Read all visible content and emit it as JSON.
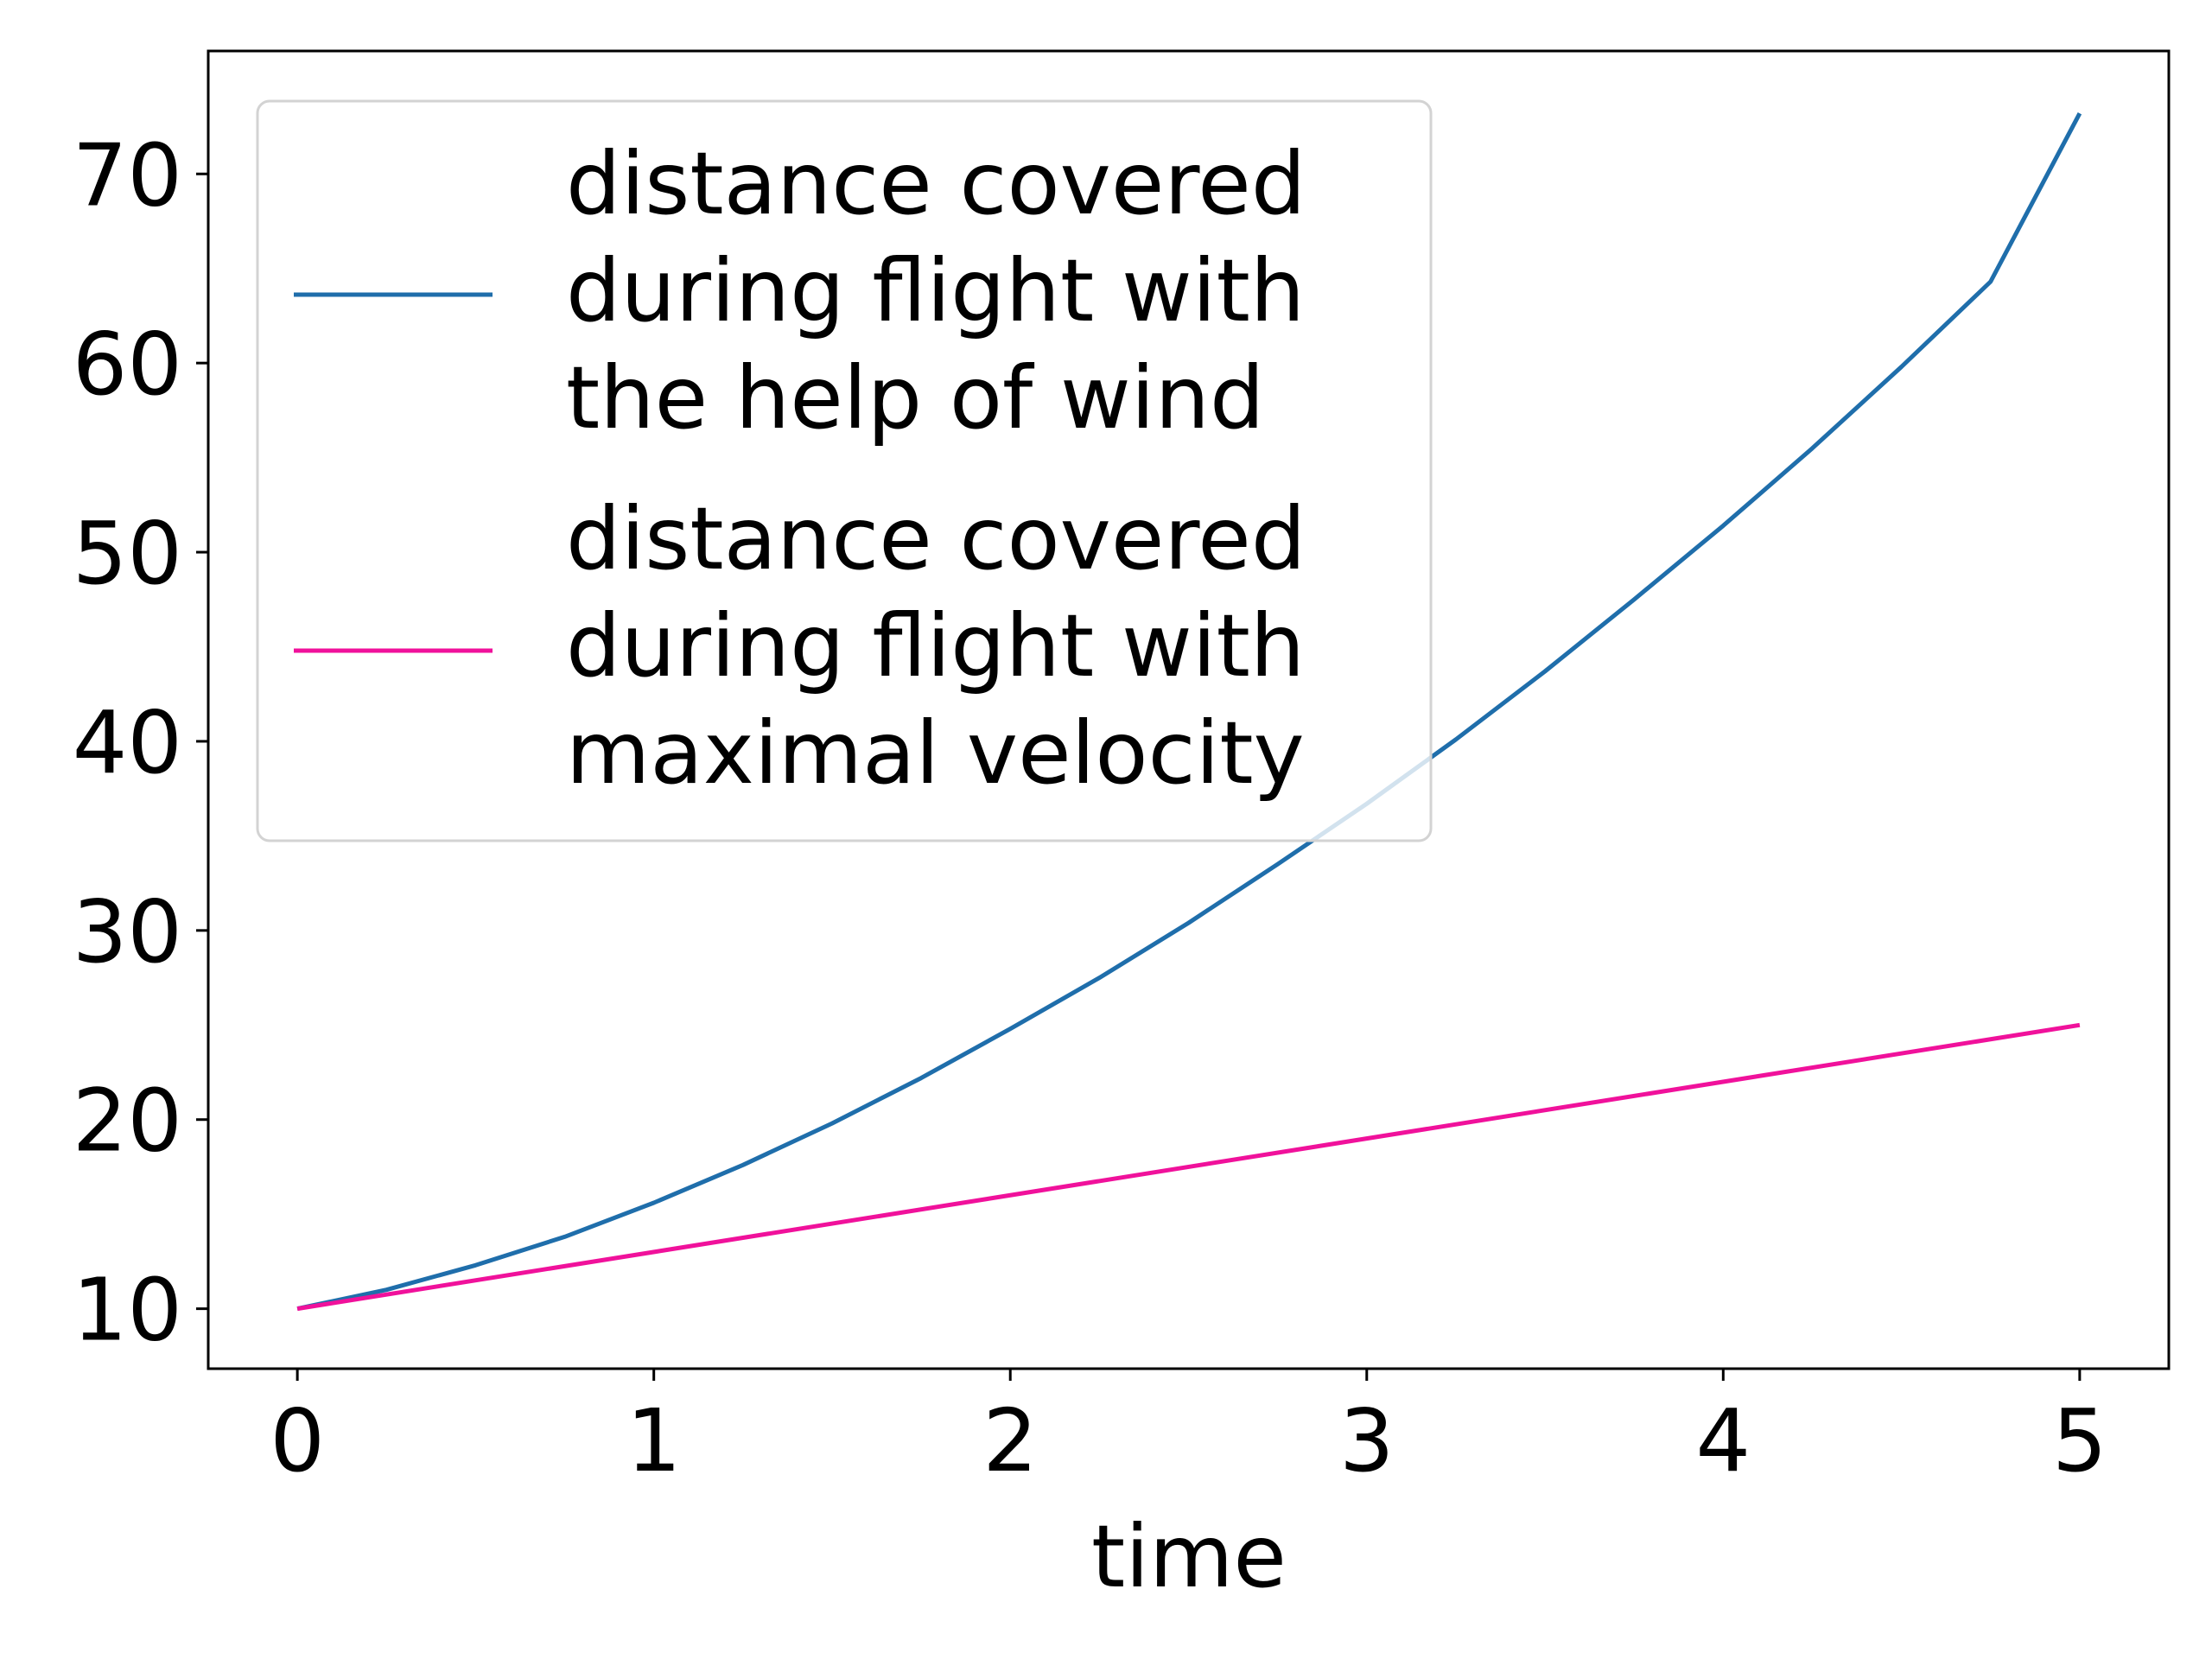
{
  "chart_data": {
    "type": "line",
    "xlabel": "time",
    "ylabel": "",
    "xlim": [
      -0.25,
      5.25
    ],
    "ylim": [
      6.83,
      76.5
    ],
    "x_ticks": [
      0,
      1,
      2,
      3,
      4,
      5
    ],
    "y_ticks": [
      10,
      20,
      30,
      40,
      50,
      60,
      70
    ],
    "grid": false,
    "legend_position": "top-left",
    "series": [
      {
        "name_lines": [
          "distance covered",
          "during flight with",
          "the help of wind"
        ],
        "color": "#1f6eab",
        "x": [
          0,
          0.25,
          0.5,
          0.75,
          1,
          1.25,
          1.5,
          1.75,
          2,
          2.25,
          2.5,
          2.75,
          3,
          3.25,
          3.5,
          3.75,
          4,
          4.25,
          4.5,
          4.75,
          5
        ],
        "y": [
          10,
          11,
          12.3,
          13.8,
          15.6,
          17.6,
          19.8,
          22.2,
          24.8,
          27.5,
          30.4,
          33.5,
          36.7,
          40.1,
          43.7,
          47.5,
          51.4,
          55.5,
          59.8,
          64.3,
          73.2
        ]
      },
      {
        "name_lines": [
          "distance covered",
          "during flight with",
          "maximal velocity"
        ],
        "color": "#f0119b",
        "x": [
          0,
          5
        ],
        "y": [
          10,
          25
        ]
      }
    ]
  }
}
